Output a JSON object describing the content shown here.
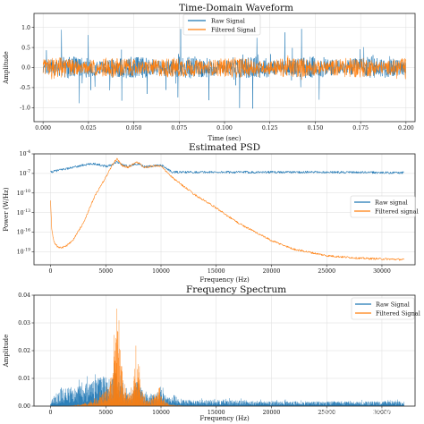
{
  "chart_data": [
    {
      "type": "line",
      "title": "Time-Domain Waveform",
      "xlabel": "Time (sec)",
      "ylabel": "Amplitude",
      "xlim": [
        -0.005,
        0.205
      ],
      "ylim": [
        -1.35,
        1.35
      ],
      "xticks": [
        0.0,
        0.025,
        0.05,
        0.075,
        0.1,
        0.125,
        0.15,
        0.175,
        0.2
      ],
      "xtick_labels": [
        "0.000",
        "0.025",
        "0.050",
        "0.075",
        "0.100",
        "0.125",
        "0.150",
        "0.175",
        "0.200"
      ],
      "yticks": [
        -1.0,
        -0.5,
        0.0,
        0.5,
        1.0
      ],
      "ytick_labels": [
        "-1.0",
        "-0.5",
        "0.0",
        "0.5",
        "1.0"
      ],
      "grid": true,
      "legend": "top-center",
      "series": [
        {
          "name": "Raw Signal",
          "color": "#1f77b4",
          "envelope": 0.22,
          "spike_max": 1.25
        },
        {
          "name": "Filtered Signal",
          "color": "#ff7f0e",
          "envelope": 0.2,
          "spike_max": 0.3
        }
      ]
    },
    {
      "type": "line",
      "title": "Estimated PSD",
      "xlabel": "Frequency (Hz)",
      "ylabel": "Power (W/Hz)",
      "yscale": "log",
      "xlim": [
        -1500,
        33000
      ],
      "ylim_exponent": [
        -21,
        -4
      ],
      "xticks": [
        0,
        5000,
        10000,
        15000,
        20000,
        25000,
        30000
      ],
      "xtick_labels": [
        "0",
        "5000",
        "10000",
        "15000",
        "20000",
        "25000",
        "30000"
      ],
      "ytick_exponents": [
        -4,
        -7,
        -10,
        -13,
        -16,
        -19
      ],
      "ytick_labels": [
        "10",
        "10",
        "10",
        "10",
        "10",
        "10"
      ],
      "ytick_superscripts": [
        "-4",
        "-7",
        "-10",
        "-13",
        "-16",
        "-19"
      ],
      "grid": true,
      "legend": "center-right",
      "series": [
        {
          "name": "Raw signal",
          "color": "#1f77b4",
          "x": [
            0,
            1000,
            2000,
            3000,
            4000,
            5000,
            5500,
            6000,
            6500,
            7000,
            7800,
            8500,
            9500,
            10000,
            11000,
            15000,
            20000,
            25000,
            32000
          ],
          "log10_y": [
            -6.8,
            -6.4,
            -6.1,
            -5.7,
            -5.5,
            -5.9,
            -5.7,
            -5.2,
            -5.7,
            -5.9,
            -5.5,
            -6.0,
            -5.8,
            -5.7,
            -6.8,
            -6.8,
            -6.8,
            -6.8,
            -6.9
          ]
        },
        {
          "name": "Filtered signal",
          "color": "#ff7f0e",
          "x": [
            0,
            100,
            300,
            600,
            1000,
            1500,
            2000,
            3000,
            4000,
            5000,
            5500,
            6000,
            6500,
            7000,
            7800,
            8500,
            9500,
            10000,
            11000,
            13000,
            15000,
            17000,
            20000,
            22000,
            25000,
            28000,
            32000
          ],
          "log10_y": [
            -11.2,
            -15.5,
            -17.5,
            -18.2,
            -18.4,
            -18.0,
            -17.3,
            -14.5,
            -10.5,
            -7.6,
            -6.0,
            -4.7,
            -5.8,
            -6.1,
            -5.2,
            -6.1,
            -5.8,
            -5.9,
            -7.6,
            -10.2,
            -12.3,
            -14.6,
            -17.3,
            -18.6,
            -19.6,
            -20.0,
            -20.2
          ]
        }
      ]
    },
    {
      "type": "line",
      "title": "Frequency Spectrum",
      "xlabel": "Frequency (Hz)",
      "ylabel": "Amplitude",
      "xlim": [
        -1500,
        33000
      ],
      "ylim": [
        0,
        0.04
      ],
      "xticks": [
        0,
        5000,
        10000,
        15000,
        20000,
        25000,
        30000
      ],
      "xtick_labels": [
        "0",
        "5000",
        "10000",
        "15000",
        "20000",
        "25000",
        "30000"
      ],
      "yticks": [
        0.0,
        0.01,
        0.02,
        0.03,
        0.04
      ],
      "ytick_labels": [
        "0.00",
        "0.01",
        "0.02",
        "0.03",
        "0.04"
      ],
      "grid": true,
      "legend": "top-right",
      "series": [
        {
          "name": "Raw Signal",
          "color": "#1f77b4",
          "x": [
            0,
            500,
            1000,
            2000,
            3000,
            4000,
            4800,
            5500,
            6000,
            6500,
            7000,
            7800,
            8500,
            9500,
            10000,
            10500,
            12000,
            15000,
            20000,
            25000,
            32000
          ],
          "y": [
            0.0015,
            0.004,
            0.006,
            0.006,
            0.007,
            0.008,
            0.01,
            0.008,
            0.012,
            0.006,
            0.004,
            0.008,
            0.004,
            0.004,
            0.005,
            0.003,
            0.002,
            0.002,
            0.0015,
            0.0015,
            0.0015
          ]
        },
        {
          "name": "Filtered Signal",
          "color": "#ff7f0e",
          "x": [
            0,
            1000,
            2000,
            3000,
            4000,
            5000,
            5500,
            5800,
            6000,
            6200,
            6600,
            7000,
            7500,
            7800,
            8100,
            8500,
            9000,
            9500,
            9800,
            10200,
            10800,
            12000,
            15000,
            32000
          ],
          "y": [
            0,
            0,
            0.0002,
            0.0008,
            0.002,
            0.005,
            0.01,
            0.019,
            0.038,
            0.02,
            0.008,
            0.004,
            0.005,
            0.027,
            0.006,
            0.003,
            0.002,
            0.003,
            0.007,
            0.002,
            0.0005,
            0.0001,
            0,
            0
          ]
        }
      ]
    }
  ],
  "watermark": "头条 @雷锋锂电技术2023"
}
